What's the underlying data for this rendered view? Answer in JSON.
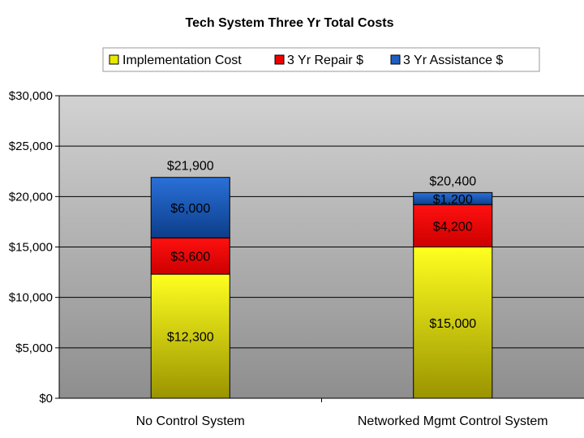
{
  "chart_data": {
    "type": "bar",
    "stacked": true,
    "title": "Tech System Three Yr Total Costs",
    "xlabel": "",
    "ylabel": "",
    "categories": [
      "No Control System",
      "Networked Mgmt Control System"
    ],
    "series": [
      {
        "name": "Implementation Cost",
        "values": [
          12300,
          15000
        ],
        "labels": [
          "$12,300",
          "$15,000"
        ],
        "color": "#e8e800"
      },
      {
        "name": "3 Yr Repair $",
        "values": [
          3600,
          4200
        ],
        "labels": [
          "$3,600",
          "$4,200"
        ],
        "color": "#ee0000"
      },
      {
        "name": "3 Yr Assistance $",
        "values": [
          6000,
          1200
        ],
        "labels": [
          "$6,000",
          "$1,200"
        ],
        "color": "#1f5fbf"
      }
    ],
    "totals": [
      "$21,900",
      "$20,400"
    ],
    "ylim": [
      0,
      30000
    ],
    "yticks": [
      0,
      5000,
      10000,
      15000,
      20000,
      25000,
      30000
    ],
    "ytick_labels": [
      "$0",
      "$5,000",
      "$10,000",
      "$15,000",
      "$20,000",
      "$25,000",
      "$30,000"
    ],
    "grid": true,
    "legend_position": "top"
  }
}
